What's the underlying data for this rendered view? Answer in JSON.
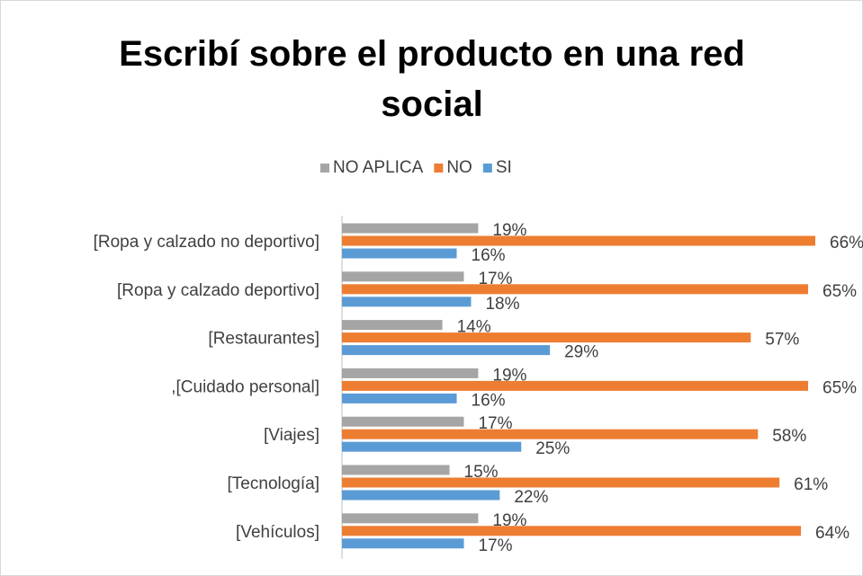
{
  "chart_data": {
    "type": "bar",
    "orientation": "horizontal",
    "title": "Escribí sobre el producto en una red social",
    "categories": [
      "[Ropa y calzado no deportivo]",
      "[Ropa y calzado deportivo]",
      "[Restaurantes]",
      ",[Cuidado personal]",
      "[Viajes]",
      "[Tecnología]",
      "[Vehículos]"
    ],
    "series": [
      {
        "name": "NO APLICA",
        "color": "#a5a5a5",
        "values": [
          19,
          17,
          14,
          19,
          17,
          15,
          19
        ],
        "value_labels": [
          "19%",
          "17%",
          "14%",
          "19%",
          "17%",
          "15%",
          "19%"
        ]
      },
      {
        "name": "NO",
        "color": "#ed7d31",
        "values": [
          66,
          65,
          57,
          65,
          58,
          61,
          64
        ],
        "value_labels": [
          "66%",
          "65%",
          "57%",
          "65%",
          "58%",
          "61%",
          "64%"
        ]
      },
      {
        "name": "SI",
        "color": "#5b9bd5",
        "values": [
          16,
          18,
          29,
          16,
          25,
          22,
          17
        ],
        "value_labels": [
          "16%",
          "18%",
          "29%",
          "16%",
          "25%",
          "22%",
          "17%"
        ]
      }
    ],
    "legend": "top"
  }
}
